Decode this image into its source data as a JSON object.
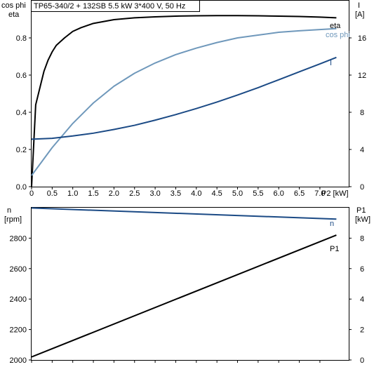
{
  "chart_data": [
    {
      "type": "line",
      "title": "TP65-340/2 + 132SB   5.5 kW   3*400 V, 50 Hz",
      "xlabel": "P2 [kW]",
      "xlim": [
        0,
        7.7
      ],
      "x_ticks": [
        "0",
        "0.5",
        "1.0",
        "1.5",
        "2.0",
        "2.5",
        "3.0",
        "3.5",
        "4.0",
        "4.5",
        "5.0",
        "5.5",
        "6.0",
        "6.5",
        "7.0"
      ],
      "x_tick_values": [
        0,
        0.5,
        1.0,
        1.5,
        2.0,
        2.5,
        3.0,
        3.5,
        4.0,
        4.5,
        5.0,
        5.5,
        6.0,
        6.5,
        7.0
      ],
      "y_left_label": [
        "cos phi",
        "eta"
      ],
      "y_left_lim": [
        0,
        1.0
      ],
      "y_left_ticks": [
        "0.0",
        "0.2",
        "0.4",
        "0.6",
        "0.8"
      ],
      "y_left_tick_values": [
        0,
        0.2,
        0.4,
        0.6,
        0.8
      ],
      "y_right_label": [
        "I",
        "[A]"
      ],
      "y_right_lim": [
        0,
        20
      ],
      "y_right_ticks": [
        "0",
        "4",
        "8",
        "12",
        "16"
      ],
      "y_right_tick_values": [
        0,
        4,
        8,
        12,
        16
      ],
      "grid": false,
      "series": [
        {
          "name": "eta",
          "axis": "left",
          "color": "#000000",
          "x": [
            0.0,
            0.1,
            0.2,
            0.3,
            0.4,
            0.5,
            0.6,
            0.8,
            1.0,
            1.2,
            1.5,
            2.0,
            2.5,
            3.0,
            3.5,
            4.0,
            4.5,
            5.0,
            5.5,
            6.0,
            6.5,
            7.0,
            7.4
          ],
          "values": [
            0.0,
            0.44,
            0.53,
            0.62,
            0.68,
            0.725,
            0.76,
            0.8,
            0.835,
            0.855,
            0.878,
            0.898,
            0.908,
            0.913,
            0.917,
            0.919,
            0.92,
            0.92,
            0.919,
            0.917,
            0.915,
            0.912,
            0.908
          ]
        },
        {
          "name": "cos phi",
          "axis": "left",
          "color": "#6f98bb",
          "x": [
            0.0,
            0.5,
            1.0,
            1.5,
            2.0,
            2.5,
            3.0,
            3.5,
            4.0,
            4.5,
            5.0,
            5.5,
            6.0,
            6.5,
            7.0,
            7.4
          ],
          "values": [
            0.06,
            0.21,
            0.34,
            0.45,
            0.54,
            0.61,
            0.665,
            0.71,
            0.745,
            0.775,
            0.8,
            0.815,
            0.83,
            0.838,
            0.845,
            0.85
          ]
        },
        {
          "name": "I",
          "axis": "right",
          "color": "#1b4a85",
          "x": [
            0.0,
            0.5,
            1.0,
            1.5,
            2.0,
            2.5,
            3.0,
            3.5,
            4.0,
            4.5,
            5.0,
            5.5,
            6.0,
            6.5,
            7.0,
            7.4
          ],
          "values": [
            5.1,
            5.2,
            5.45,
            5.75,
            6.15,
            6.6,
            7.15,
            7.75,
            8.4,
            9.1,
            9.85,
            10.65,
            11.5,
            12.35,
            13.2,
            13.9
          ]
        }
      ]
    },
    {
      "type": "line",
      "xlim": [
        0,
        7.7
      ],
      "y_left_label": [
        "n",
        "[rpm]"
      ],
      "y_left_lim": [
        2000,
        3000
      ],
      "y_left_ticks": [
        "2000",
        "2200",
        "2400",
        "2600",
        "2800"
      ],
      "y_left_tick_values": [
        2000,
        2200,
        2400,
        2600,
        2800
      ],
      "y_right_label": [
        "P1",
        "[kW]"
      ],
      "y_right_lim": [
        0,
        10
      ],
      "y_right_ticks": [
        "0",
        "2",
        "4",
        "6",
        "8"
      ],
      "y_right_tick_values": [
        0,
        2,
        4,
        6,
        8
      ],
      "grid": false,
      "series": [
        {
          "name": "n",
          "axis": "left",
          "color": "#1b4a85",
          "x": [
            0.0,
            7.4
          ],
          "values": [
            2998,
            2925
          ]
        },
        {
          "name": "P1",
          "axis": "right",
          "color": "#000000",
          "x": [
            0.0,
            7.4
          ],
          "values": [
            0.2,
            8.2
          ]
        }
      ]
    }
  ]
}
